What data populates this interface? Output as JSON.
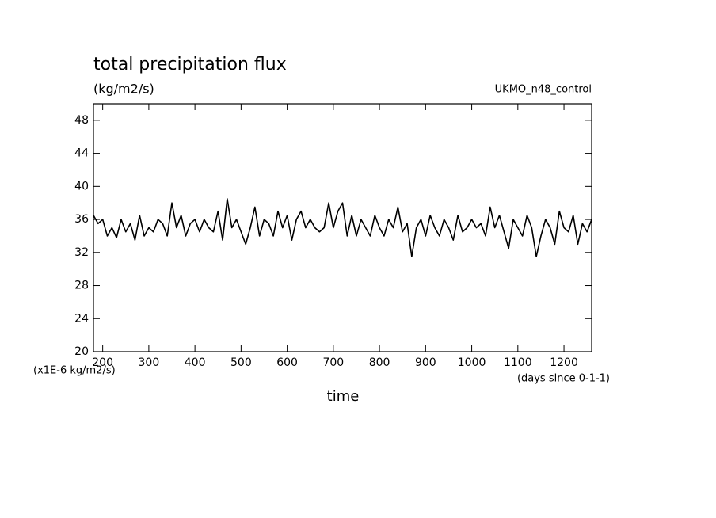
{
  "chart_data": {
    "type": "line",
    "title": "total precipitation flux",
    "subtitle": "(kg/m2/s)",
    "dataset_label": "UKMO_n48_control",
    "y_units_label": "(x1E-6 kg/m2/s)",
    "x_units_label": "(days since 0-1-1)",
    "x_label": "time",
    "x": [
      180,
      190,
      200,
      210,
      220,
      230,
      240,
      250,
      260,
      270,
      280,
      290,
      300,
      310,
      320,
      330,
      340,
      350,
      360,
      370,
      380,
      390,
      400,
      410,
      420,
      430,
      440,
      450,
      460,
      470,
      480,
      490,
      500,
      510,
      520,
      530,
      540,
      550,
      560,
      570,
      580,
      590,
      600,
      610,
      620,
      630,
      640,
      650,
      660,
      670,
      680,
      690,
      700,
      710,
      720,
      730,
      740,
      750,
      760,
      770,
      780,
      790,
      800,
      810,
      820,
      830,
      840,
      850,
      860,
      870,
      880,
      890,
      900,
      910,
      920,
      930,
      940,
      950,
      960,
      970,
      980,
      990,
      1000,
      1010,
      1020,
      1030,
      1040,
      1050,
      1060,
      1070,
      1080,
      1090,
      1100,
      1110,
      1120,
      1130,
      1140,
      1150,
      1160,
      1170,
      1180,
      1190,
      1200,
      1210,
      1220,
      1230,
      1240,
      1250,
      1260
    ],
    "series": [
      {
        "name": "UKMO_n48_control",
        "color": "#000000",
        "values": [
          36.5,
          35.5,
          36,
          34,
          35,
          33.8,
          36,
          34.5,
          35.5,
          33.5,
          36.5,
          34,
          35,
          34.5,
          36,
          35.5,
          34,
          38,
          35,
          36.5,
          34,
          35.5,
          36,
          34.5,
          36,
          35,
          34.5,
          37,
          33.5,
          38.5,
          35,
          36,
          34.5,
          33,
          35,
          37.5,
          34,
          36,
          35.5,
          34,
          37,
          35,
          36.5,
          33.5,
          36,
          37,
          35,
          36,
          35,
          34.5,
          35,
          38,
          35,
          37,
          38,
          34,
          36.5,
          34,
          36,
          35,
          34,
          36.5,
          35,
          34,
          36,
          35,
          37.5,
          34.5,
          35.5,
          31.5,
          35,
          36,
          34,
          36.5,
          35,
          34,
          36,
          35,
          33.5,
          36.5,
          34.5,
          35,
          36,
          35,
          35.5,
          34,
          37.5,
          35,
          36.5,
          34.5,
          32.5,
          36,
          35,
          34,
          36.5,
          35,
          31.5,
          34,
          36,
          35,
          33,
          37,
          35,
          34.5,
          36.5,
          33,
          35.5,
          34.5,
          36
        ]
      }
    ],
    "xlim": [
      180,
      1260
    ],
    "ylim": [
      20,
      50
    ],
    "xticks": [
      200,
      300,
      400,
      500,
      600,
      700,
      800,
      900,
      1000,
      1100,
      1200
    ],
    "yticks": [
      20,
      24,
      28,
      32,
      36,
      40,
      44,
      48
    ]
  }
}
